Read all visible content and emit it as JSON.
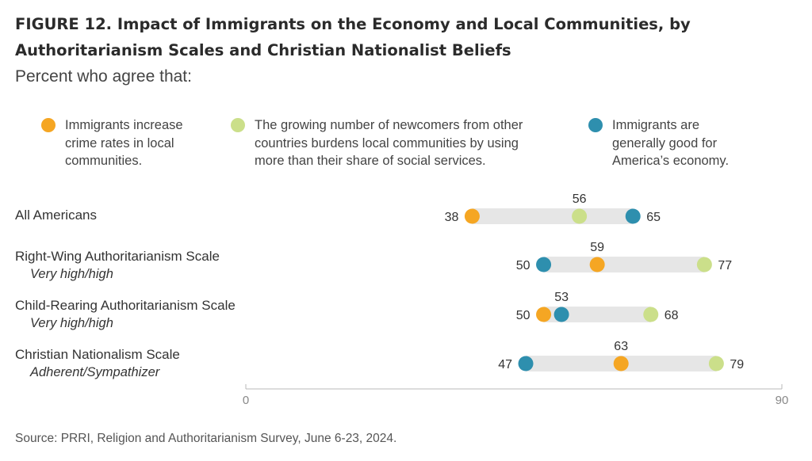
{
  "figure_title": "FIGURE 12.  Impact of Immigrants on the Economy and Local Communities, by Authoritarianism Scales and Christian Nationalist Beliefs",
  "subtitle": "Percent who agree that:",
  "legend": [
    {
      "label_lines": [
        "Immigrants increase",
        "crime rates in local",
        "communities."
      ],
      "color": "#F5A623"
    },
    {
      "label_lines": [
        "The growing number of newcomers from other",
        "countries burdens local communities by using",
        "more than their share of social services."
      ],
      "color": "#CBDF8A"
    },
    {
      "label_lines": [
        "Immigrants are",
        "generally good for",
        "America’s economy."
      ],
      "color": "#2E8FAE"
    }
  ],
  "source": "Source: PRRI, Religion and Authoritarianism Survey, June 6-23, 2024.",
  "chart_data": {
    "type": "dot-range",
    "title": "FIGURE 12.  Impact of Immigrants on the Economy and Local Communities, by Authoritarianism Scales and Christian Nationalist Beliefs",
    "subtitle": "Percent who agree that:",
    "xlim": [
      0,
      90
    ],
    "x_ticks": [
      "0",
      "90"
    ],
    "series": [
      {
        "name": "Immigrants increase crime rates in local communities.",
        "color": "#F5A623"
      },
      {
        "name": "The growing number of newcomers from other countries burdens local communities by using more than their share of social services.",
        "color": "#CBDF8A"
      },
      {
        "name": "Immigrants are generally good for America’s economy.",
        "color": "#2E8FAE"
      }
    ],
    "categories": [
      {
        "label": "All Americans",
        "sublabel": "",
        "values": [
          38,
          56,
          65
        ]
      },
      {
        "label": "Right-Wing Authoritarianism Scale",
        "sublabel": "Very high/high",
        "values": [
          59,
          77,
          50
        ]
      },
      {
        "label": "Child-Rearing Authoritarianism Scale",
        "sublabel": "Very high/high",
        "values": [
          50,
          68,
          53
        ]
      },
      {
        "label": "Christian Nationalism Scale",
        "sublabel": "Adherent/Sympathizer",
        "values": [
          63,
          79,
          47
        ]
      }
    ]
  }
}
